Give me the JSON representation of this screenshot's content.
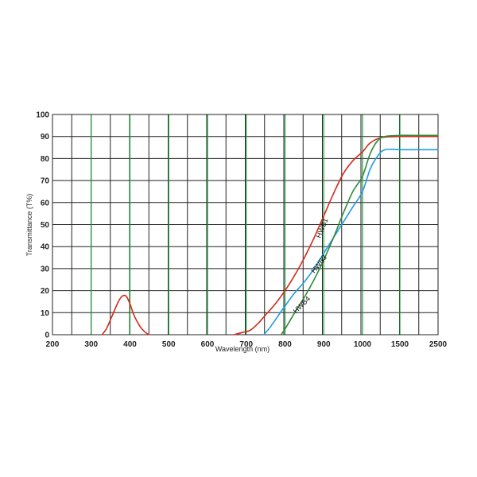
{
  "chart_data": {
    "type": "line",
    "title": "",
    "xlabel": "Wavelength (nm)",
    "ylabel": "Transmittance (T%)",
    "x_ticks": [
      "200",
      "300",
      "400",
      "500",
      "600",
      "700",
      "800",
      "900",
      "1000",
      "1500",
      "2500"
    ],
    "y_ticks": [
      "0",
      "10",
      "20",
      "30",
      "40",
      "50",
      "60",
      "70",
      "80",
      "90",
      "100"
    ],
    "ylim": [
      0,
      100
    ],
    "x_scale": "piecewise (200–1000 linear, 1000–2500 compressed)",
    "grid": true,
    "colors": {
      "grid_black": "#222222",
      "grid_green": "#1e9e3e",
      "red": "#d42a1a",
      "blue": "#1f9be0",
      "green": "#2e8b3a"
    },
    "series": [
      {
        "name": "",
        "color": "#d42a1a",
        "points": [
          [
            328,
            0
          ],
          [
            340,
            3
          ],
          [
            355,
            9
          ],
          [
            370,
            15
          ],
          [
            380,
            17.5
          ],
          [
            390,
            17.5
          ],
          [
            400,
            14
          ],
          [
            410,
            9
          ],
          [
            425,
            4
          ],
          [
            440,
            1
          ],
          [
            450,
            0
          ]
        ]
      },
      {
        "name": "HWB1",
        "color": "#d42a1a",
        "points": [
          [
            668,
            0
          ],
          [
            690,
            1
          ],
          [
            710,
            2
          ],
          [
            730,
            5
          ],
          [
            750,
            9
          ],
          [
            775,
            14
          ],
          [
            800,
            20
          ],
          [
            825,
            27
          ],
          [
            850,
            35
          ],
          [
            875,
            44
          ],
          [
            900,
            54
          ],
          [
            925,
            64
          ],
          [
            950,
            73
          ],
          [
            975,
            79
          ],
          [
            1000,
            83
          ],
          [
            1100,
            87
          ],
          [
            1250,
            89.5
          ],
          [
            1500,
            90
          ],
          [
            2000,
            90
          ],
          [
            2500,
            90
          ]
        ]
      },
      {
        "name": "HWB3",
        "color": "#1f9be0",
        "points": [
          [
            745,
            0
          ],
          [
            760,
            3
          ],
          [
            780,
            8
          ],
          [
            800,
            13
          ],
          [
            825,
            19
          ],
          [
            850,
            24
          ],
          [
            875,
            30
          ],
          [
            900,
            37
          ],
          [
            925,
            44
          ],
          [
            950,
            51
          ],
          [
            975,
            58
          ],
          [
            1000,
            65
          ],
          [
            1100,
            75
          ],
          [
            1200,
            81
          ],
          [
            1300,
            84
          ],
          [
            1500,
            84
          ],
          [
            2000,
            84
          ],
          [
            2500,
            84
          ]
        ]
      },
      {
        "name": "HWB4",
        "color": "#2e8b3a",
        "points": [
          [
            790,
            0
          ],
          [
            805,
            4
          ],
          [
            825,
            10
          ],
          [
            850,
            17
          ],
          [
            875,
            25
          ],
          [
            900,
            34
          ],
          [
            925,
            44
          ],
          [
            950,
            55
          ],
          [
            975,
            65
          ],
          [
            1000,
            72
          ],
          [
            1100,
            82
          ],
          [
            1200,
            88
          ],
          [
            1300,
            90
          ],
          [
            1500,
            90.5
          ],
          [
            2000,
            90.5
          ],
          [
            2500,
            90.5
          ]
        ]
      }
    ],
    "curve_labels": [
      "HWB1",
      "HWB3",
      "HWB4"
    ]
  }
}
